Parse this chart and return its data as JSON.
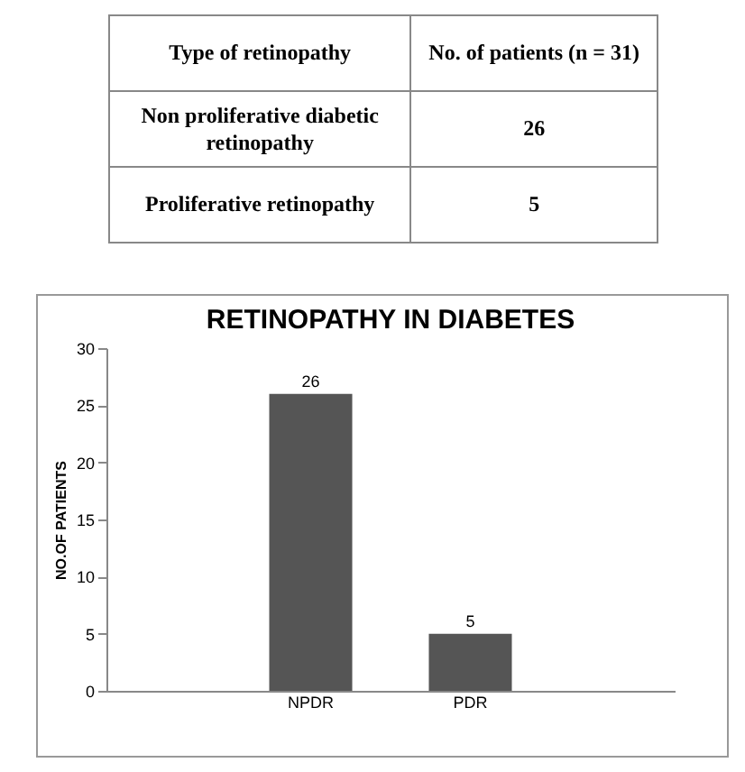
{
  "chart_data": [
    {
      "type": "other",
      "annotations": [
        "Type of retinopathy",
        "No. of patients (n = 31)",
        "Non proliferative diabetic retinopathy",
        "26",
        "Proliferative retinopathy",
        "5"
      ]
    },
    {
      "type": "bar",
      "title": "RETINOPATHY IN DIABETES",
      "ylabel": "NO.OF PATIENTS",
      "categories": [
        null,
        "NPDR",
        "PDR",
        null
      ],
      "values": [
        null,
        26,
        5,
        null
      ],
      "color": "#555555",
      "ylim": [
        0,
        30
      ],
      "yticks": [
        0,
        5,
        10,
        15,
        20,
        25,
        30
      ],
      "data_labels": true
    }
  ]
}
